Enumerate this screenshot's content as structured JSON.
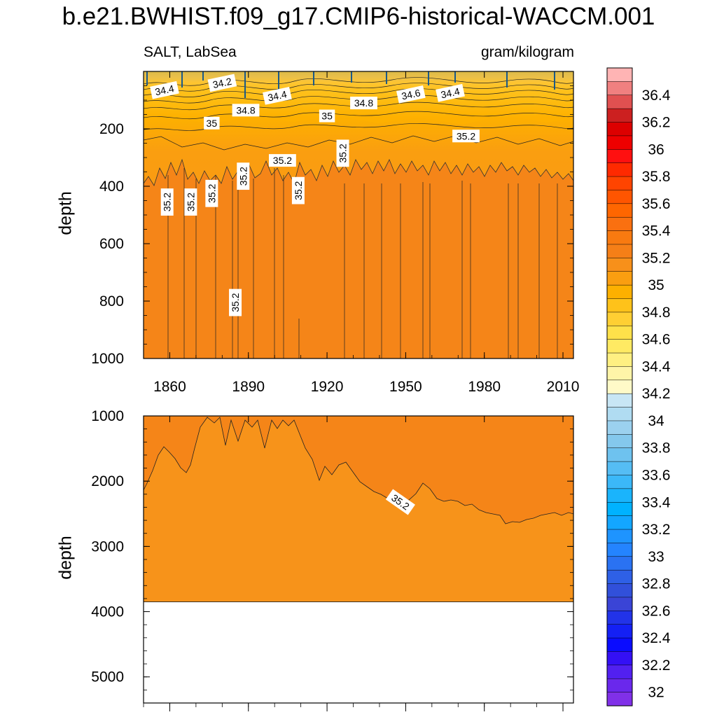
{
  "title": "b.e21.BWHIST.f09_g17.CMIP6-historical-WACCM.001",
  "subtitle_left": "SALT, LabSea",
  "subtitle_right": "gram/kilogram",
  "chart_data": [
    {
      "type": "heatmap",
      "panel": "upper",
      "ylabel": "depth",
      "xlim": [
        1850,
        2014
      ],
      "ylim": [
        1000,
        0
      ],
      "x_ticks": [
        1860,
        1890,
        1920,
        1950,
        1980,
        2010
      ],
      "y_ticks": [
        200,
        400,
        600,
        800,
        1000
      ],
      "contour_labels": [
        {
          "text": "34.4",
          "x": 1858,
          "y": 65
        },
        {
          "text": "34.2",
          "x": 1880,
          "y": 40
        },
        {
          "text": "34.4",
          "x": 1901,
          "y": 85
        },
        {
          "text": "34.8",
          "x": 1889,
          "y": 135
        },
        {
          "text": "35",
          "x": 1876,
          "y": 180
        },
        {
          "text": "35",
          "x": 1920,
          "y": 155
        },
        {
          "text": "34.8",
          "x": 1934,
          "y": 110
        },
        {
          "text": "34.6",
          "x": 1952,
          "y": 80
        },
        {
          "text": "34.4",
          "x": 1967,
          "y": 75
        },
        {
          "text": "35.2",
          "x": 1973,
          "y": 225
        },
        {
          "text": "35.2",
          "x": 1926,
          "y": 285
        },
        {
          "text": "35.2",
          "x": 1903,
          "y": 310
        },
        {
          "text": "35.2",
          "x": 1888,
          "y": 365
        },
        {
          "text": "35.2",
          "x": 1876,
          "y": 425
        },
        {
          "text": "35.2",
          "x": 1859,
          "y": 455
        },
        {
          "text": "35.2",
          "x": 1868,
          "y": 455
        },
        {
          "text": "35.2",
          "x": 1909,
          "y": 415
        },
        {
          "text": "35.2",
          "x": 1885,
          "y": 805
        }
      ]
    },
    {
      "type": "heatmap",
      "panel": "lower",
      "ylabel": "depth",
      "xlim": [
        1850,
        2014
      ],
      "ylim": [
        5400,
        1000
      ],
      "y_ticks": [
        1000,
        2000,
        3000,
        4000,
        5000
      ],
      "bottom_depth": 3850,
      "contour_labels": [
        {
          "text": "35.2",
          "x": 1948,
          "y": 2320
        }
      ]
    }
  ],
  "colorbar": {
    "labels": [
      "36.4",
      "36.2",
      "36",
      "35.8",
      "35.6",
      "35.4",
      "35.2",
      "35",
      "34.8",
      "34.6",
      "34.4",
      "34.2",
      "34",
      "33.8",
      "33.6",
      "33.4",
      "33.2",
      "33",
      "32.8",
      "32.6",
      "32.4",
      "32.2",
      "32"
    ],
    "colors": [
      "#ffb4b4",
      "#f08080",
      "#e05050",
      "#cc2020",
      "#dd0000",
      "#ee0000",
      "#ff1010",
      "#ff2a00",
      "#ff4400",
      "#ff5500",
      "#ff6600",
      "#fa7010",
      "#f87a10",
      "#f57f17",
      "#f7901a",
      "#fa9e10",
      "#fdb000",
      "#fec21a",
      "#ffcf33",
      "#ffe14a",
      "#ffea63",
      "#fff082",
      "#fff5a8",
      "#fffac8",
      "#c8e6f5",
      "#b0dcf2",
      "#9bd1ef",
      "#84c8ed",
      "#6ec2ef",
      "#55bdf4",
      "#3bb8f8",
      "#1ab4fc",
      "#00b2ff",
      "#13a6ff",
      "#1e94ff",
      "#2484ff",
      "#2a72f2",
      "#2e60e6",
      "#3150da",
      "#3a44d6",
      "#2233e8",
      "#1420f4",
      "#0a0cff",
      "#3410f5",
      "#5220f0",
      "#6a28ec",
      "#8030e8"
    ]
  }
}
